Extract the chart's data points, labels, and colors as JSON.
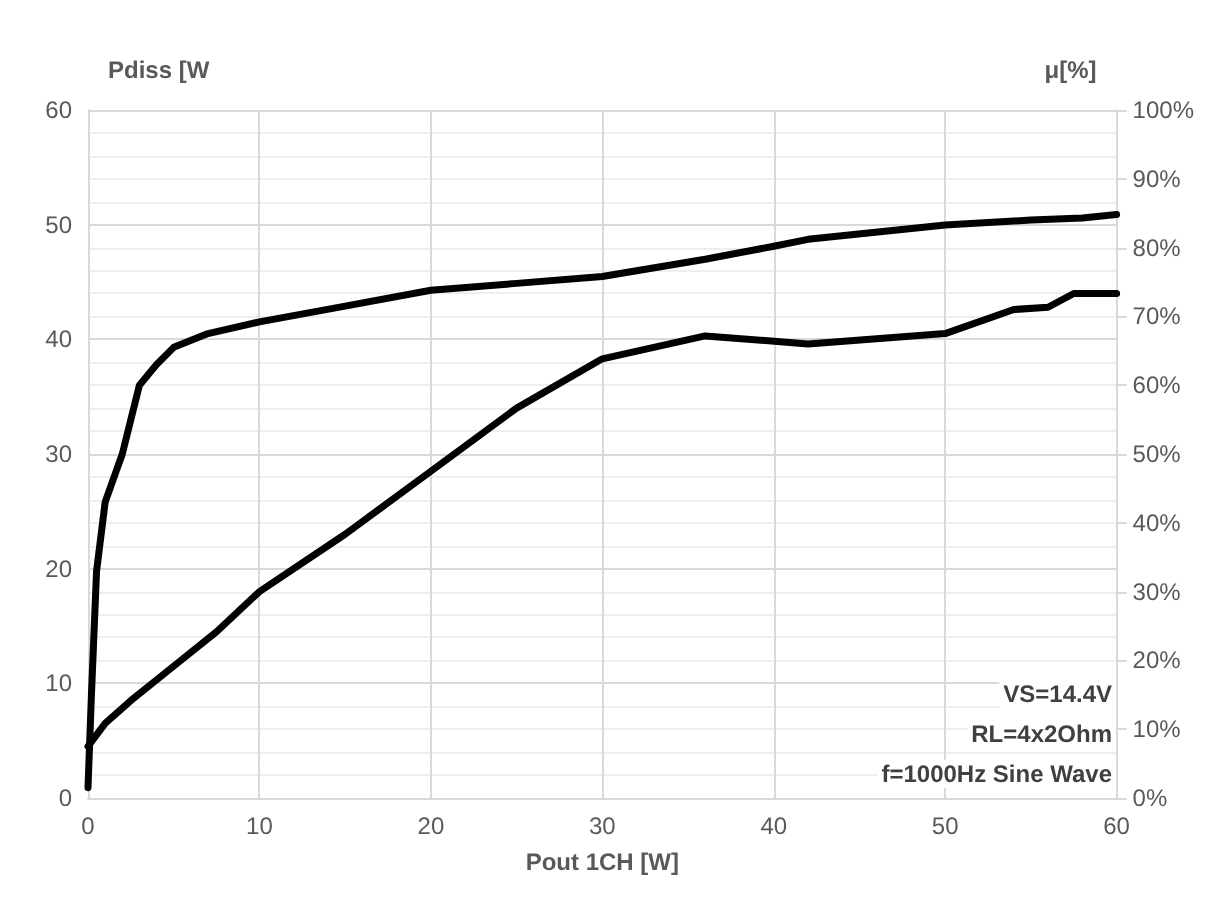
{
  "chart_data": {
    "type": "line",
    "xlabel": "Pout 1CH [W]",
    "ylabel": "Pdiss [W",
    "y2label": "μ[%]",
    "xlim": [
      0,
      60
    ],
    "xticks": [
      0,
      10,
      20,
      30,
      40,
      50,
      60
    ],
    "ylim": [
      0,
      60
    ],
    "yticks": [
      0,
      10,
      20,
      30,
      40,
      50,
      60
    ],
    "y2lim": [
      0,
      100
    ],
    "y2ticks": [
      {
        "value": 0,
        "label": "0%"
      },
      {
        "value": 10,
        "label": "10%"
      },
      {
        "value": 20,
        "label": "20%"
      },
      {
        "value": 30,
        "label": "30%"
      },
      {
        "value": 40,
        "label": "40%"
      },
      {
        "value": 50,
        "label": "50%"
      },
      {
        "value": 60,
        "label": "60%"
      },
      {
        "value": 70,
        "label": "70%"
      },
      {
        "value": 80,
        "label": "80%"
      },
      {
        "value": 90,
        "label": "90%"
      },
      {
        "value": 100,
        "label": "100%"
      }
    ],
    "grid": true,
    "marker": "none",
    "line_style": "solid",
    "annotations": [
      "VS=14.4V",
      "RL=4x2Ohm",
      "f=1000Hz Sine Wave"
    ],
    "series": [
      {
        "color": "#000000",
        "x": [
          0,
          1,
          2.5,
          5,
          7.5,
          10,
          15,
          20,
          25,
          30,
          36,
          42,
          50,
          54,
          56,
          57.5,
          60
        ],
        "values": [
          4.5,
          6.5,
          8.5,
          11.5,
          14.5,
          18,
          23,
          28.5,
          34,
          38.3,
          40.3,
          39.6,
          40.5,
          42.6,
          42.8,
          44,
          44
        ]
      },
      {
        "color": "#000000",
        "axis": "y2",
        "x": [
          0,
          0.2,
          0.5,
          1,
          2,
          3,
          4,
          5,
          7,
          10,
          15,
          20,
          25,
          30,
          36,
          40,
          42,
          50,
          55,
          58,
          60
        ],
        "values": [
          1.5,
          15,
          33,
          43,
          50,
          60,
          63,
          65.5,
          67.5,
          69.2,
          71.5,
          73.8,
          74.8,
          75.8,
          78.3,
          80.2,
          81.2,
          83.3,
          84,
          84.3,
          84.8
        ]
      }
    ]
  }
}
